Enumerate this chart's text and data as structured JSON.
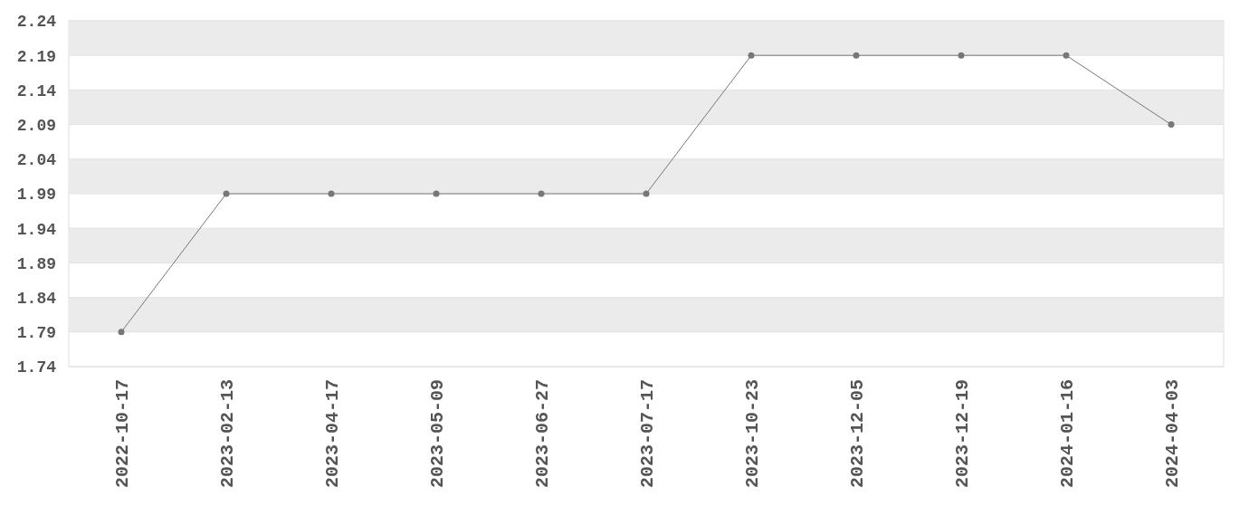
{
  "chart_data": {
    "type": "line",
    "categories": [
      "2022-10-17",
      "2023-02-13",
      "2023-04-17",
      "2023-05-09",
      "2023-06-27",
      "2023-07-17",
      "2023-10-23",
      "2023-12-05",
      "2023-12-19",
      "2024-01-16",
      "2024-04-03"
    ],
    "series": [
      {
        "color": "#777777",
        "values": [
          1.79,
          1.99,
          1.99,
          1.99,
          1.99,
          1.99,
          2.19,
          2.19,
          2.19,
          2.19,
          2.09
        ]
      }
    ],
    "ylim": [
      1.74,
      2.24
    ],
    "yticks": [
      1.74,
      1.79,
      1.84,
      1.89,
      1.94,
      1.99,
      2.04,
      2.09,
      2.14,
      2.19,
      2.24
    ],
    "grid": "y",
    "marker": "circle",
    "line_style": "solid"
  }
}
